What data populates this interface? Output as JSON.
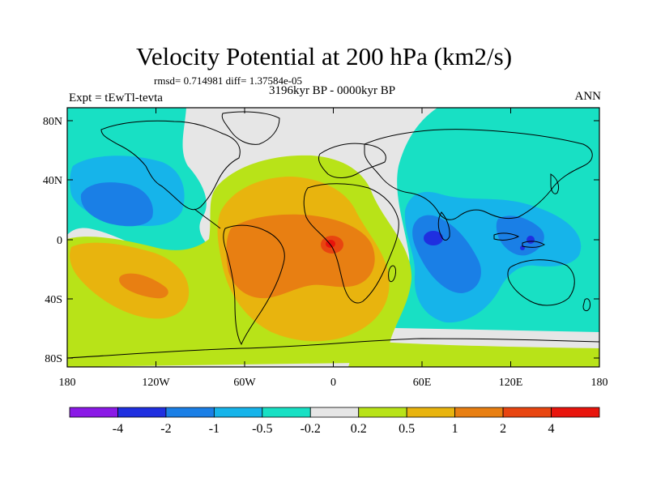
{
  "title": "Velocity Potential at 200 hPa (km2/s)",
  "stats": "rmsd= 0.714981 diff= 1.37584e-05",
  "period": "3196kyr BP - 0000kyr BP",
  "experiment": "Expt = tEwTl-tevta",
  "season": "ANN",
  "lat_labels": [
    "80N",
    "40N",
    "0",
    "40S",
    "80S"
  ],
  "lon_labels": [
    "180",
    "120W",
    "60W",
    "0",
    "60E",
    "120E",
    "180"
  ],
  "colorbar": {
    "labels": [
      "-4",
      "-2",
      "-1",
      "-0.5",
      "-0.2",
      "0.2",
      "0.5",
      "1",
      "2",
      "4"
    ],
    "colors": [
      "#8a19e6",
      "#1f2fe0",
      "#1a7fe6",
      "#16b4ea",
      "#18e0c4",
      "#e6e6e6",
      "#b8e318",
      "#e8b40e",
      "#e87f12",
      "#e84510",
      "#e8140c"
    ]
  }
}
